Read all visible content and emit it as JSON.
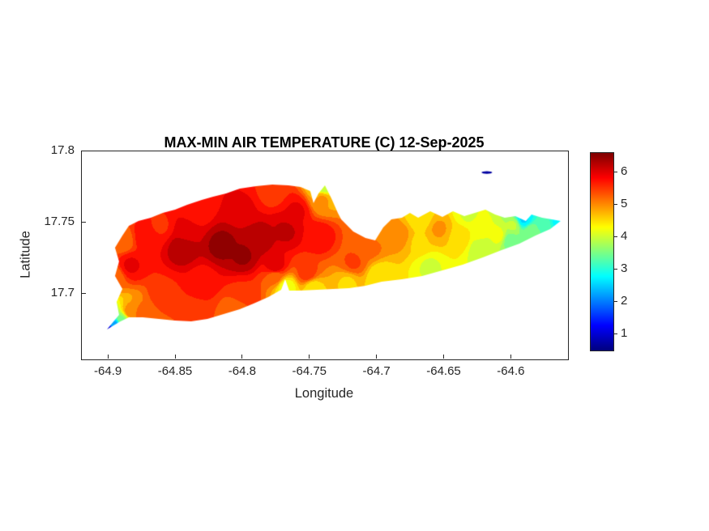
{
  "figure": {
    "title": "MAX-MIN AIR TEMPERATURE (C) 12-Sep-2025",
    "background": "#ffffff"
  },
  "colors": {
    "axis": "#262626",
    "title_text": "#000000",
    "label_text": "#262626",
    "background": "#ffffff"
  },
  "chart_data": {
    "type": "heatmap",
    "title": "MAX-MIN AIR TEMPERATURE (C) 12-Sep-2025",
    "xlabel": "Longitude",
    "ylabel": "Latitude",
    "xlim": [
      -64.92,
      -64.558
    ],
    "ylim": [
      17.654,
      17.8
    ],
    "grid": false,
    "xticks": {
      "values": [
        -64.9,
        -64.85,
        -64.8,
        -64.75,
        -64.7,
        -64.65,
        -64.6
      ],
      "labels": [
        "-64.9",
        "-64.85",
        "-64.8",
        "-64.75",
        "-64.7",
        "-64.65",
        "-64.6"
      ]
    },
    "yticks": {
      "values": [
        17.8,
        17.75,
        17.7
      ],
      "labels": [
        "17.8",
        "17.75",
        "17.7"
      ]
    },
    "colorbar": {
      "colormap": "jet",
      "clim": [
        0.5,
        6.6
      ],
      "position": "right",
      "ticks": {
        "values": [
          1,
          2,
          3,
          4,
          5,
          6
        ],
        "labels": [
          "1",
          "2",
          "3",
          "4",
          "5",
          "6"
        ]
      }
    },
    "island_outline": [
      [
        -64.9013,
        17.675
      ],
      [
        -64.8923,
        17.6853
      ],
      [
        -64.8941,
        17.6944
      ],
      [
        -64.8898,
        17.7034
      ],
      [
        -64.8953,
        17.7125
      ],
      [
        -64.8923,
        17.7227
      ],
      [
        -64.8953,
        17.7324
      ],
      [
        -64.8898,
        17.7409
      ],
      [
        -64.885,
        17.7477
      ],
      [
        -64.8778,
        17.7511
      ],
      [
        -64.8687,
        17.7534
      ],
      [
        -64.8597,
        17.7568
      ],
      [
        -64.8506,
        17.7591
      ],
      [
        -64.8416,
        17.7625
      ],
      [
        -64.8307,
        17.7659
      ],
      [
        -64.8223,
        17.7682
      ],
      [
        -64.8126,
        17.7705
      ],
      [
        -64.8024,
        17.7739
      ],
      [
        -64.7903,
        17.7756
      ],
      [
        -64.7782,
        17.7767
      ],
      [
        -64.7662,
        17.7761
      ],
      [
        -64.7571,
        17.775
      ],
      [
        -64.7499,
        17.7722
      ],
      [
        -64.7475,
        17.7636
      ],
      [
        -64.7438,
        17.7705
      ],
      [
        -64.739,
        17.7761
      ],
      [
        -64.7342,
        17.7671
      ],
      [
        -64.7294,
        17.7568
      ],
      [
        -64.7269,
        17.7523
      ],
      [
        -64.7179,
        17.7438
      ],
      [
        -64.7088,
        17.7392
      ],
      [
        -64.7016,
        17.7375
      ],
      [
        -64.6956,
        17.7466
      ],
      [
        -64.6895,
        17.7523
      ],
      [
        -64.6817,
        17.7534
      ],
      [
        -64.6757,
        17.7568
      ],
      [
        -64.6696,
        17.7534
      ],
      [
        -64.6606,
        17.758
      ],
      [
        -64.6515,
        17.754
      ],
      [
        -64.6437,
        17.758
      ],
      [
        -64.6352,
        17.7546
      ],
      [
        -64.6274,
        17.7568
      ],
      [
        -64.6195,
        17.7591
      ],
      [
        -64.6123,
        17.7557
      ],
      [
        -64.6051,
        17.7534
      ],
      [
        -64.5972,
        17.7546
      ],
      [
        -64.5894,
        17.7511
      ],
      [
        -64.5852,
        17.7557
      ],
      [
        -64.5773,
        17.7534
      ],
      [
        -64.5701,
        17.7523
      ],
      [
        -64.5635,
        17.7511
      ],
      [
        -64.5713,
        17.7455
      ],
      [
        -64.5822,
        17.7409
      ],
      [
        -64.5942,
        17.7352
      ],
      [
        -64.6075,
        17.7307
      ],
      [
        -64.6214,
        17.7256
      ],
      [
        -64.6365,
        17.7205
      ],
      [
        -64.6515,
        17.7165
      ],
      [
        -64.6666,
        17.7125
      ],
      [
        -64.6817,
        17.7103
      ],
      [
        -64.6968,
        17.7086
      ],
      [
        -64.7088,
        17.7057
      ],
      [
        -64.7209,
        17.704
      ],
      [
        -64.733,
        17.7034
      ],
      [
        -64.745,
        17.7029
      ],
      [
        -64.7583,
        17.7023
      ],
      [
        -64.7656,
        17.7023
      ],
      [
        -64.7686,
        17.7103
      ],
      [
        -64.7716,
        17.7029
      ],
      [
        -64.7812,
        17.6978
      ],
      [
        -64.7921,
        17.6932
      ],
      [
        -64.8024,
        17.6892
      ],
      [
        -64.8144,
        17.6858
      ],
      [
        -64.8265,
        17.6824
      ],
      [
        -64.8386,
        17.6807
      ],
      [
        -64.8506,
        17.6813
      ],
      [
        -64.8627,
        17.6824
      ],
      [
        -64.8747,
        17.6836
      ],
      [
        -64.885,
        17.6836
      ],
      [
        -64.8923,
        17.6801
      ]
    ],
    "samples": [
      [
        -64.884,
        17.72,
        5.9
      ],
      [
        -64.872,
        17.74,
        5.8
      ],
      [
        -64.858,
        17.7,
        5.6
      ],
      [
        -64.842,
        17.744,
        6.0
      ],
      [
        -64.845,
        17.732,
        6.3
      ],
      [
        -64.816,
        17.734,
        6.45
      ],
      [
        -64.8,
        17.727,
        6.4
      ],
      [
        -64.789,
        17.738,
        6.3
      ],
      [
        -64.768,
        17.744,
        6.15
      ],
      [
        -64.776,
        17.719,
        6.05
      ],
      [
        -64.83,
        17.71,
        5.8
      ],
      [
        -64.8,
        17.7,
        5.6
      ],
      [
        -64.776,
        17.712,
        5.2
      ],
      [
        -64.752,
        17.714,
        5.5
      ],
      [
        -64.744,
        17.74,
        5.8
      ],
      [
        -64.76,
        17.758,
        5.9
      ],
      [
        -64.8,
        17.76,
        5.9
      ],
      [
        -64.835,
        17.758,
        5.7
      ],
      [
        -64.862,
        17.748,
        5.6
      ],
      [
        -64.896,
        17.712,
        5.2
      ],
      [
        -64.89,
        17.737,
        5.2
      ],
      [
        -64.875,
        17.685,
        5.3
      ],
      [
        -64.838,
        17.682,
        5.4
      ],
      [
        -64.805,
        17.69,
        5.2
      ],
      [
        -64.9,
        17.6745,
        1.0
      ],
      [
        -64.8955,
        17.678,
        2.3
      ],
      [
        -64.89,
        17.682,
        3.6
      ],
      [
        -64.8845,
        17.687,
        5.0
      ],
      [
        -64.768,
        17.7045,
        4.2
      ],
      [
        -64.748,
        17.7045,
        4.5
      ],
      [
        -64.722,
        17.7075,
        4.6
      ],
      [
        -64.7395,
        17.7755,
        3.9
      ],
      [
        -64.741,
        17.766,
        4.9
      ],
      [
        -64.718,
        17.722,
        5.4
      ],
      [
        -64.706,
        17.733,
        5.2
      ],
      [
        -64.7,
        17.7455,
        5.0
      ],
      [
        -64.698,
        17.712,
        4.4
      ],
      [
        -64.684,
        17.741,
        5.0
      ],
      [
        -64.669,
        17.736,
        4.6
      ],
      [
        -64.654,
        17.7455,
        4.9
      ],
      [
        -64.639,
        17.74,
        4.55
      ],
      [
        -64.624,
        17.7445,
        4.35
      ],
      [
        -64.61,
        17.741,
        4.2
      ],
      [
        -64.599,
        17.748,
        3.9
      ],
      [
        -64.591,
        17.7525,
        2.6
      ],
      [
        -64.585,
        17.7435,
        3.6
      ],
      [
        -64.5755,
        17.7485,
        3.2
      ],
      [
        -64.565,
        17.751,
        2.8
      ],
      [
        -64.661,
        17.719,
        4.1
      ],
      [
        -64.622,
        17.7325,
        3.9
      ],
      [
        -64.601,
        17.7375,
        3.5
      ],
      [
        -64.668,
        17.7535,
        4.4
      ],
      [
        -64.632,
        17.7555,
        4.1
      ],
      [
        -64.778,
        17.772,
        5.5
      ]
    ],
    "patches": [
      {
        "shape": "ellipse",
        "lon": -64.6184,
        "lat": 17.7852,
        "rx": 0.004,
        "ry": 0.0009,
        "value": 0.7
      }
    ]
  }
}
